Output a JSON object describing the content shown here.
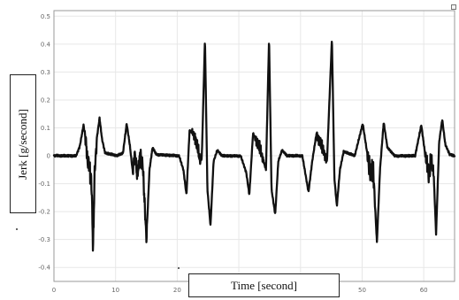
{
  "chart_data": {
    "type": "line",
    "xlabel": "Time [second]",
    "ylabel": "Jerk [g/second]",
    "xlim": [
      0,
      65
    ],
    "ylim": [
      -0.45,
      0.52
    ],
    "xticks": [
      0,
      10,
      20,
      30,
      40,
      50,
      60
    ],
    "yticks": [
      0.5,
      0.4,
      0.3,
      0.2,
      0.1,
      0,
      -0.1,
      -0.2,
      -0.3,
      -0.4
    ],
    "xtick_labels": [
      "0",
      "10",
      "20",
      "30",
      "40",
      "50",
      "60"
    ],
    "ytick_labels": [
      "0.5",
      "0.4",
      "0.3",
      "0.2",
      "0.1",
      "0",
      "-0.1",
      "-0.2",
      "-0.3",
      "-0.4"
    ],
    "grid": true,
    "series": [
      {
        "points": [
          [
            0,
            0
          ],
          [
            3.6,
            0
          ],
          [
            4.2,
            0.035
          ],
          [
            4.8,
            0.11
          ],
          [
            5.2,
            0.05
          ],
          [
            5.5,
            -0.03
          ],
          [
            5.7,
            -0.02
          ],
          [
            5.9,
            -0.06
          ],
          [
            6.1,
            -0.1
          ],
          [
            6.35,
            -0.34
          ],
          [
            6.6,
            -0.06
          ],
          [
            7.0,
            0.07
          ],
          [
            7.4,
            0.135
          ],
          [
            7.8,
            0.06
          ],
          [
            8.3,
            0.01
          ],
          [
            10.3,
            0
          ],
          [
            11.2,
            0.01
          ],
          [
            11.8,
            0.115
          ],
          [
            12.3,
            0.04
          ],
          [
            12.8,
            -0.06
          ],
          [
            13.1,
            0.01
          ],
          [
            13.5,
            -0.07
          ],
          [
            14.0,
            0.0
          ],
          [
            14.4,
            -0.03
          ],
          [
            15.0,
            -0.3
          ],
          [
            15.5,
            -0.05
          ],
          [
            16.0,
            0.03
          ],
          [
            16.6,
            0.005
          ],
          [
            20.3,
            0
          ],
          [
            21.0,
            -0.05
          ],
          [
            21.5,
            -0.14
          ],
          [
            22.0,
            0.09
          ],
          [
            22.6,
            0.08
          ],
          [
            23.2,
            0.04
          ],
          [
            23.7,
            -0.02
          ],
          [
            24.0,
            0.0
          ],
          [
            24.5,
            0.42
          ],
          [
            24.9,
            -0.12
          ],
          [
            25.4,
            -0.25
          ],
          [
            25.9,
            -0.02
          ],
          [
            26.5,
            0.02
          ],
          [
            27.3,
            0.0
          ],
          [
            30.3,
            0
          ],
          [
            31.2,
            -0.06
          ],
          [
            31.7,
            -0.14
          ],
          [
            32.3,
            0.08
          ],
          [
            33.2,
            0.04
          ],
          [
            34.0,
            -0.02
          ],
          [
            34.4,
            -0.05
          ],
          [
            34.9,
            0.42
          ],
          [
            35.3,
            -0.12
          ],
          [
            35.9,
            -0.21
          ],
          [
            36.4,
            -0.02
          ],
          [
            37.0,
            0.02
          ],
          [
            37.8,
            0.0
          ],
          [
            40.3,
            0
          ],
          [
            41.3,
            -0.13
          ],
          [
            41.9,
            -0.02
          ],
          [
            42.6,
            0.08
          ],
          [
            43.4,
            0.04
          ],
          [
            44.3,
            -0.02
          ],
          [
            45.1,
            0.42
          ],
          [
            45.5,
            -0.08
          ],
          [
            45.9,
            -0.18
          ],
          [
            46.4,
            -0.05
          ],
          [
            47.0,
            0.015
          ],
          [
            48.8,
            0
          ],
          [
            50.1,
            0.115
          ],
          [
            51.3,
            -0.06
          ],
          [
            51.8,
            -0.05
          ],
          [
            52.4,
            -0.31
          ],
          [
            52.9,
            -0.05
          ],
          [
            53.5,
            0.12
          ],
          [
            54.1,
            0.03
          ],
          [
            55.3,
            0
          ],
          [
            58.6,
            0
          ],
          [
            59.6,
            0.11
          ],
          [
            60.2,
            0.01
          ],
          [
            60.8,
            -0.07
          ],
          [
            61.2,
            -0.02
          ],
          [
            61.6,
            -0.06
          ],
          [
            62.0,
            -0.28
          ],
          [
            62.5,
            0.05
          ],
          [
            63.0,
            0.13
          ],
          [
            63.5,
            0.04
          ],
          [
            64.2,
            0.005
          ],
          [
            65,
            0
          ]
        ],
        "color": "#111111"
      }
    ],
    "noise_regions": [
      [
        5.0,
        7.0,
        0.045
      ],
      [
        12.8,
        15.2,
        0.04
      ],
      [
        22.4,
        24.0,
        0.03
      ],
      [
        32.6,
        34.0,
        0.03
      ],
      [
        42.6,
        44.2,
        0.03
      ],
      [
        50.8,
        52.1,
        0.055
      ],
      [
        60.2,
        61.7,
        0.045
      ]
    ]
  },
  "labels": {
    "ylabel_box": "Jerk [g/second]",
    "xlabel_box": "Time [second]"
  },
  "colors": {
    "grid": "#e7e7e7",
    "axes": "#9a9a9a",
    "line": "#111111",
    "text": "#111111"
  }
}
